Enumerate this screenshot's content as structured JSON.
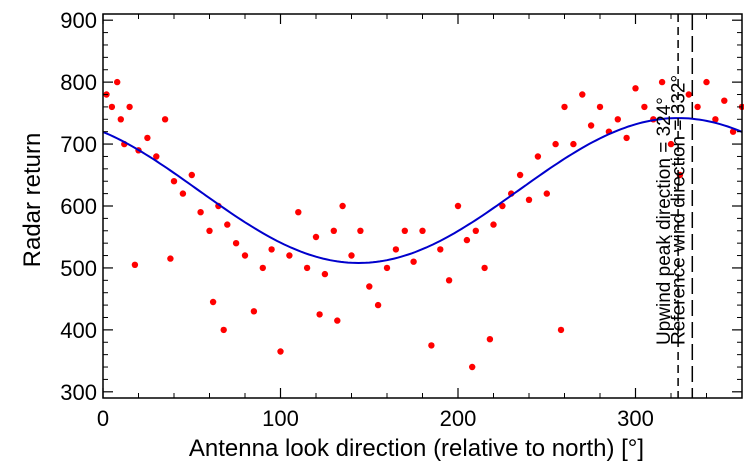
{
  "chart_data": {
    "type": "scatter",
    "title": "",
    "xlabel": "Antenna look direction (relative to north) [°]",
    "ylabel": "Radar return",
    "xlim": [
      0,
      360
    ],
    "ylim": [
      290,
      910
    ],
    "x_ticks": [
      0,
      100,
      200,
      300
    ],
    "y_ticks": [
      300,
      400,
      500,
      600,
      700,
      800,
      900
    ],
    "grid": false,
    "colors": {
      "points": "#ff0000",
      "fit": "#0000cc",
      "lines": "#000000"
    },
    "fit_curve": {
      "form": "mean + amplitude * cos(direction - peak_direction)",
      "mean": 625,
      "amplitude": 117,
      "peak_direction": 324
    },
    "scatter_points_sampled": [
      [
        2,
        780
      ],
      [
        5,
        760
      ],
      [
        8,
        800
      ],
      [
        10,
        740
      ],
      [
        12,
        700
      ],
      [
        15,
        760
      ],
      [
        18,
        505
      ],
      [
        20,
        690
      ],
      [
        25,
        710
      ],
      [
        30,
        680
      ],
      [
        35,
        740
      ],
      [
        38,
        515
      ],
      [
        40,
        640
      ],
      [
        45,
        620
      ],
      [
        50,
        650
      ],
      [
        55,
        590
      ],
      [
        60,
        560
      ],
      [
        62,
        445
      ],
      [
        65,
        600
      ],
      [
        68,
        400
      ],
      [
        70,
        570
      ],
      [
        75,
        540
      ],
      [
        80,
        520
      ],
      [
        85,
        430
      ],
      [
        90,
        500
      ],
      [
        95,
        530
      ],
      [
        100,
        365
      ],
      [
        105,
        520
      ],
      [
        110,
        590
      ],
      [
        115,
        500
      ],
      [
        120,
        550
      ],
      [
        122,
        425
      ],
      [
        125,
        490
      ],
      [
        130,
        560
      ],
      [
        132,
        415
      ],
      [
        135,
        600
      ],
      [
        140,
        520
      ],
      [
        145,
        560
      ],
      [
        150,
        470
      ],
      [
        155,
        440
      ],
      [
        160,
        500
      ],
      [
        165,
        530
      ],
      [
        170,
        560
      ],
      [
        175,
        510
      ],
      [
        180,
        560
      ],
      [
        185,
        375
      ],
      [
        190,
        530
      ],
      [
        195,
        480
      ],
      [
        200,
        600
      ],
      [
        205,
        545
      ],
      [
        208,
        340
      ],
      [
        210,
        560
      ],
      [
        215,
        500
      ],
      [
        218,
        385
      ],
      [
        220,
        570
      ],
      [
        225,
        600
      ],
      [
        230,
        620
      ],
      [
        235,
        650
      ],
      [
        240,
        610
      ],
      [
        245,
        680
      ],
      [
        250,
        620
      ],
      [
        255,
        700
      ],
      [
        258,
        400
      ],
      [
        260,
        760
      ],
      [
        265,
        700
      ],
      [
        270,
        780
      ],
      [
        275,
        730
      ],
      [
        280,
        760
      ],
      [
        285,
        720
      ],
      [
        290,
        740
      ],
      [
        295,
        710
      ],
      [
        300,
        790
      ],
      [
        305,
        760
      ],
      [
        310,
        740
      ],
      [
        315,
        800
      ],
      [
        320,
        700
      ],
      [
        325,
        650
      ],
      [
        330,
        780
      ],
      [
        335,
        760
      ],
      [
        340,
        800
      ],
      [
        345,
        740
      ],
      [
        350,
        770
      ],
      [
        355,
        720
      ],
      [
        360,
        760
      ]
    ],
    "reference_lines": [
      {
        "x": 324,
        "style": "dashed",
        "label": "Upwind peak direction = 324°"
      },
      {
        "x": 332,
        "style": "long-dashed",
        "label": "Reference wind direction = 332°"
      }
    ]
  }
}
